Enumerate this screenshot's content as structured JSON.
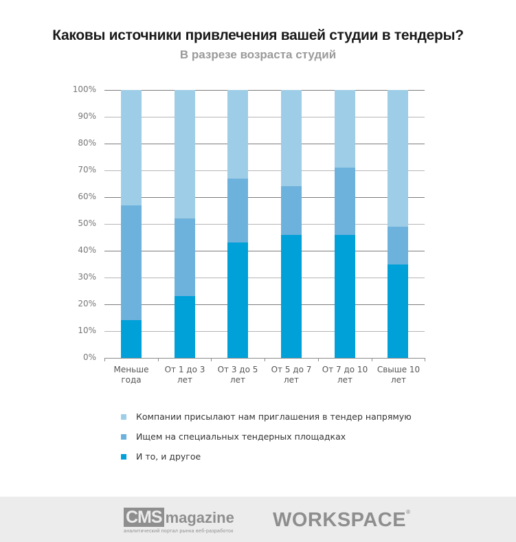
{
  "header": {
    "title": "Каковы источники привлечения вашей студии в тендеры?",
    "subtitle": "В разрезе возраста студий"
  },
  "chart_data": {
    "type": "bar",
    "stacked": true,
    "percent_stacked": true,
    "title": "Каковы источники привлечения вашей студии в тендеры?",
    "subtitle": "В разрезе возраста студий",
    "xlabel": "",
    "ylabel": "",
    "ylim": [
      0,
      100
    ],
    "yticks": [
      "0%",
      "10%",
      "20%",
      "30%",
      "40%",
      "50%",
      "60%",
      "70%",
      "80%",
      "90%",
      "100%"
    ],
    "grid": true,
    "legend_position": "bottom",
    "categories": [
      "Меньше года",
      "От 1 до 3 лет",
      "От 3 до 5 лет",
      "От 5 до 7 лет",
      "От 7 до 10 лет",
      "Свыше 10 лет"
    ],
    "category_lines": [
      [
        "Меньше",
        "года"
      ],
      [
        "От 1 до 3",
        "лет"
      ],
      [
        "От 3 до 5",
        "лет"
      ],
      [
        "От 5 до 7",
        "лет"
      ],
      [
        "От 7 до 10",
        "лет"
      ],
      [
        "Свыше 10",
        "лет"
      ]
    ],
    "series": [
      {
        "name": "И то, и другое",
        "color": "#00a0d8",
        "values": [
          14,
          23,
          43,
          46,
          46,
          35
        ]
      },
      {
        "name": "Ищем на специальных тендерных площадках",
        "color": "#6db2dc",
        "values": [
          43,
          29,
          24,
          18,
          25,
          14
        ]
      },
      {
        "name": "Компании присылают нам приглашения в тендер напрямую",
        "color": "#9ecde7",
        "values": [
          43,
          48,
          33,
          36,
          29,
          51
        ]
      }
    ]
  },
  "legend": {
    "items": [
      {
        "label": "Компании присылают нам приглашения в тендер напрямую",
        "color": "#9ecde7"
      },
      {
        "label": "Ищем на специальных тендерных площадках",
        "color": "#6db2dc"
      },
      {
        "label": "И то, и другое",
        "color": "#00a0d8"
      }
    ]
  },
  "footer": {
    "cms_logo": {
      "box": "CMS",
      "word": "magazine",
      "tagline": "аналитический портал рынка веб-разработок"
    },
    "workspace_logo": {
      "text": "WORKSPACE",
      "mark": "®"
    }
  }
}
